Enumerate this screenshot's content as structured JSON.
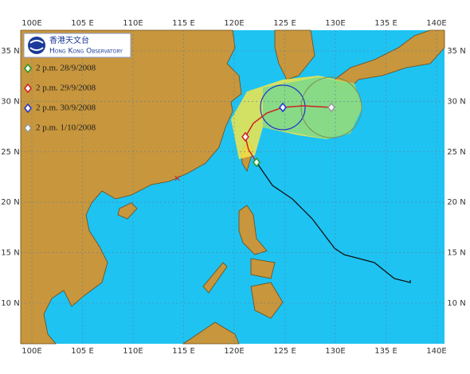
{
  "map": {
    "lon_labels": [
      "100E",
      "105 E",
      "110E",
      "115 E",
      "120E",
      "125 E",
      "130E",
      "135 E",
      "140E"
    ],
    "lat_labels": [
      "35 N",
      "30 N",
      "25 N",
      "20 N",
      "15 N",
      "10 N"
    ],
    "logo": {
      "chinese": "香港天文台",
      "english": "Hong Kong Observatory"
    },
    "legend": [
      "2 p.m. 28/9/2008",
      "2 p.m. 29/9/2008",
      "2 p.m. 30/9/2008",
      "2 p.m. 1/10/2008"
    ]
  }
}
